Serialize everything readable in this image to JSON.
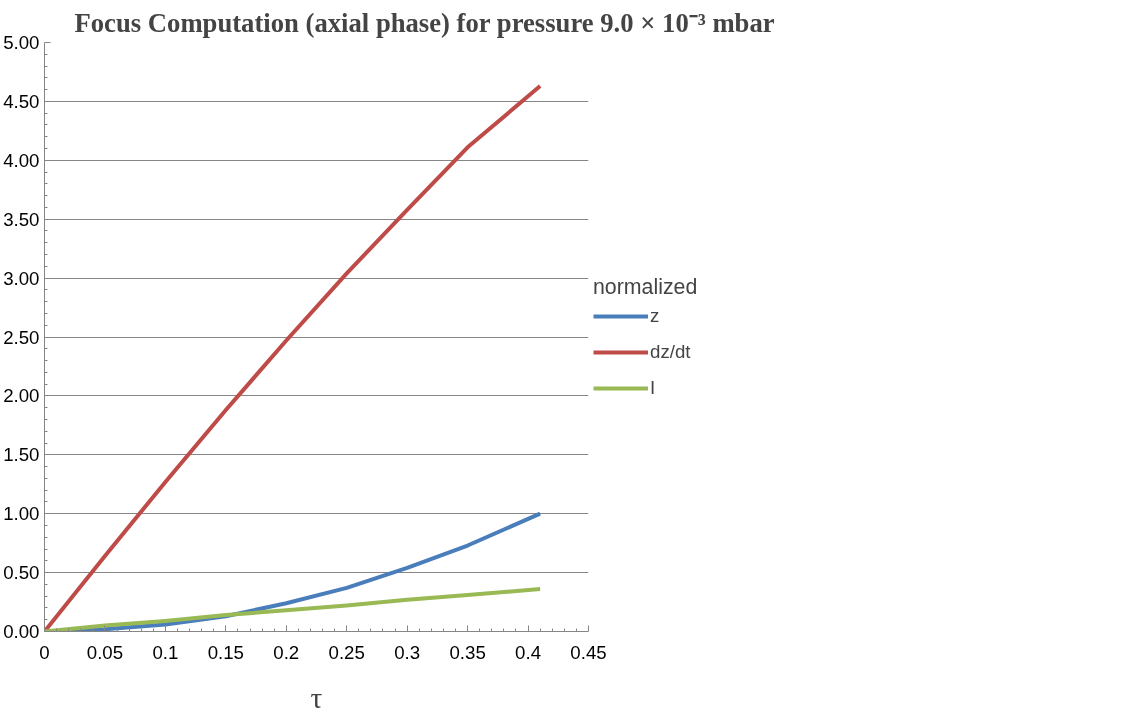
{
  "chart_data": {
    "type": "line",
    "title": "Focus Computation (axial phase) for pressure 9.0 × 10⁻³ mbar",
    "xlabel": "τ",
    "legend_title": "normalized",
    "x": [
      0,
      0.05,
      0.1,
      0.15,
      0.2,
      0.25,
      0.3,
      0.35,
      0.41
    ],
    "series": [
      {
        "name": "z",
        "color": "#4a7ebb",
        "values": [
          0,
          0.02,
          0.06,
          0.13,
          0.24,
          0.37,
          0.54,
          0.73,
          1.0
        ]
      },
      {
        "name": "dz/dt",
        "color": "#be4b48",
        "values": [
          0,
          0.64,
          1.27,
          1.88,
          2.47,
          3.04,
          3.58,
          4.11,
          4.63
        ]
      },
      {
        "name": "I",
        "color": "#98b954",
        "values": [
          0,
          0.05,
          0.09,
          0.14,
          0.18,
          0.22,
          0.27,
          0.31,
          0.36
        ]
      }
    ],
    "xlim": [
      0,
      0.45
    ],
    "xticks": [
      0,
      0.05,
      0.1,
      0.15,
      0.2,
      0.25,
      0.3,
      0.35,
      0.4,
      0.45
    ],
    "ylim": [
      0,
      5
    ],
    "yticks": [
      {
        "value": 0,
        "label": "0.00"
      },
      {
        "value": 0.5,
        "label": "0.50"
      },
      {
        "value": 1,
        "label": "1.00"
      },
      {
        "value": 1.5,
        "label": "1.50"
      },
      {
        "value": 2,
        "label": "2.00"
      },
      {
        "value": 2.5,
        "label": "2.50"
      },
      {
        "value": 3,
        "label": "3.00"
      },
      {
        "value": 3.5,
        "label": "3.50"
      },
      {
        "value": 4,
        "label": "4.00"
      },
      {
        "value": 4.5,
        "label": "4.50"
      },
      {
        "value": 5,
        "label": "5.00"
      }
    ],
    "grid": "y",
    "legend": "right",
    "marker": "none",
    "line_style": "solid"
  }
}
